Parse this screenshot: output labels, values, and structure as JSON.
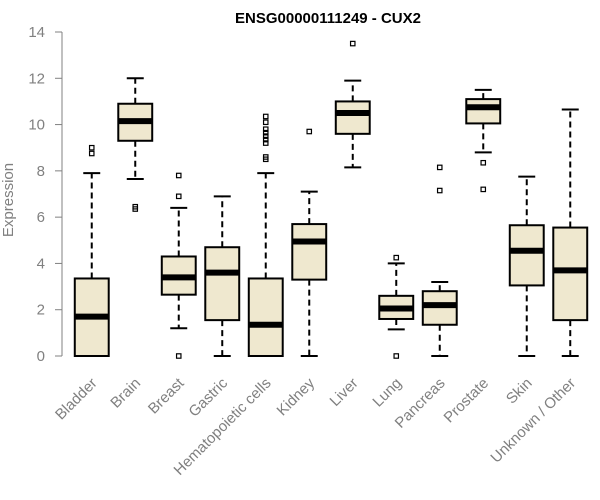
{
  "chart_data": {
    "type": "box",
    "title": "ENSG00000111249 - CUX2",
    "xlabel": "",
    "ylabel": "Expression",
    "ylim": [
      0,
      14
    ],
    "yticks": [
      0,
      2,
      4,
      6,
      8,
      10,
      12,
      14
    ],
    "categories": [
      "Bladder",
      "Brain",
      "Breast",
      "Gastric",
      "Hematopoietic cells",
      "Kidney",
      "Liver",
      "Lung",
      "Pancreas",
      "Prostate",
      "Skin",
      "Unknown / Other"
    ],
    "boxes": [
      {
        "min": 0.0,
        "q1": 0.0,
        "median": 1.7,
        "q3": 3.35,
        "max": 7.9,
        "outliers": [
          8.75,
          9.0
        ]
      },
      {
        "min": 7.65,
        "q1": 9.3,
        "median": 10.15,
        "q3": 10.9,
        "max": 12.0,
        "outliers": [
          6.35,
          6.45
        ]
      },
      {
        "min": 1.2,
        "q1": 2.65,
        "median": 3.4,
        "q3": 4.3,
        "max": 6.4,
        "outliers": [
          0.0,
          6.9,
          7.8
        ]
      },
      {
        "min": 0.0,
        "q1": 1.55,
        "median": 3.6,
        "q3": 4.7,
        "max": 6.9,
        "outliers": []
      },
      {
        "min": 0.0,
        "q1": 0.0,
        "median": 1.35,
        "q3": 3.35,
        "max": 7.9,
        "outliers": [
          8.5,
          8.6,
          9.2,
          9.35,
          9.5,
          9.65,
          9.8,
          10.1,
          10.35
        ]
      },
      {
        "min": 0.0,
        "q1": 3.3,
        "median": 4.95,
        "q3": 5.7,
        "max": 7.1,
        "outliers": [
          9.7
        ]
      },
      {
        "min": 8.15,
        "q1": 9.6,
        "median": 10.5,
        "q3": 11.0,
        "max": 11.9,
        "outliers": [
          13.5
        ]
      },
      {
        "min": 1.15,
        "q1": 1.6,
        "median": 2.05,
        "q3": 2.6,
        "max": 4.0,
        "outliers": [
          0.0,
          4.25
        ]
      },
      {
        "min": 0.0,
        "q1": 1.35,
        "median": 2.2,
        "q3": 2.8,
        "max": 3.2,
        "outliers": [
          7.15,
          8.15
        ]
      },
      {
        "min": 8.8,
        "q1": 10.05,
        "median": 10.75,
        "q3": 11.1,
        "max": 11.5,
        "outliers": [
          7.2,
          8.35
        ]
      },
      {
        "min": 0.0,
        "q1": 3.05,
        "median": 4.55,
        "q3": 5.65,
        "max": 7.75,
        "outliers": []
      },
      {
        "min": 0.0,
        "q1": 1.55,
        "median": 3.7,
        "q3": 5.55,
        "max": 10.65,
        "outliers": []
      }
    ],
    "grid": false,
    "legend": "none",
    "colors": {
      "box_fill": "#efe8cf",
      "stroke": "#000000",
      "axis": "#808080",
      "text": "#808080",
      "title": "#000000"
    }
  }
}
